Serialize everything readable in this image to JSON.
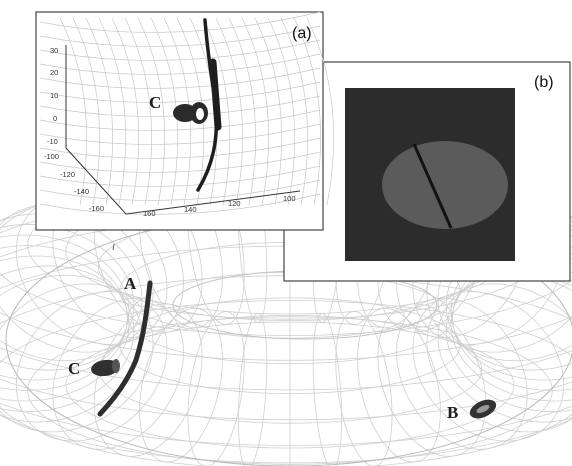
{
  "figure": {
    "labels": {
      "point_a": "A",
      "point_b": "B",
      "point_c": "C",
      "inset_c": "C"
    },
    "panel_a": {
      "label": "(a)",
      "z_ticks": [
        "30",
        "20",
        "10",
        "0",
        "-10"
      ],
      "y_ticks": [
        "-100",
        "-120",
        "-140",
        "-160"
      ],
      "x_ticks": [
        "160",
        "140",
        "120",
        "100"
      ]
    },
    "panel_b": {
      "label": "(b)"
    }
  }
}
